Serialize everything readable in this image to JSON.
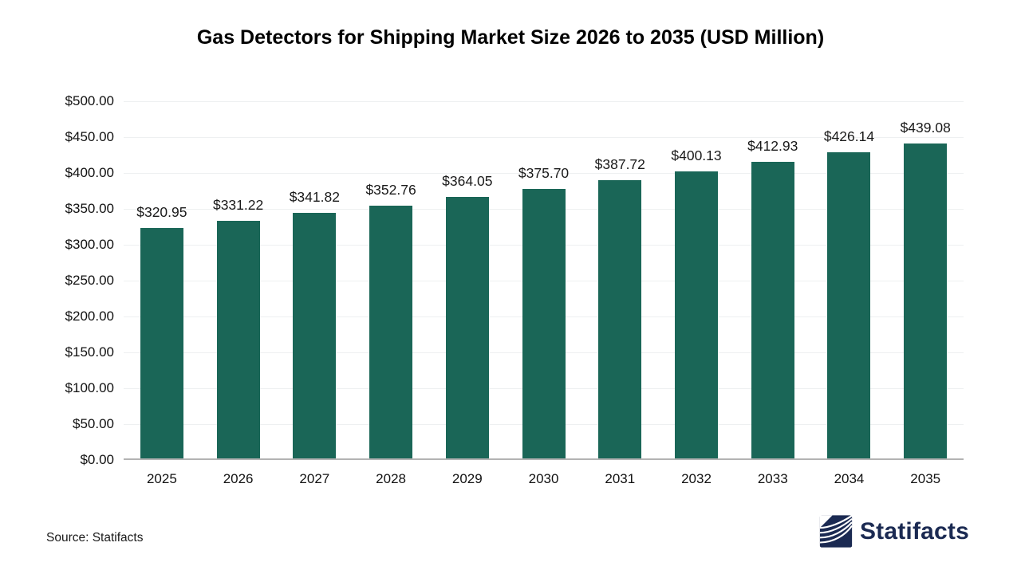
{
  "title": "Gas Detectors for Shipping Market Size 2026 to 2035 (USD Million)",
  "source": "Source: Statifacts",
  "logo": {
    "text": "Statifacts",
    "color": "#1b2a52",
    "icon": "statifacts-wave-icon"
  },
  "colors": {
    "bar": "#1a6657",
    "grid": "#eef0f1",
    "axis_line": "#b3b3b3",
    "tick_text": "#111111",
    "value_label_text": "#1a1a1a",
    "title_text": "#000000"
  },
  "chart_data": {
    "type": "bar",
    "title": "Gas Detectors for Shipping Market Size 2026 to 2035 (USD Million)",
    "categories": [
      "2025",
      "2026",
      "2027",
      "2028",
      "2029",
      "2030",
      "2031",
      "2032",
      "2033",
      "2034",
      "2035"
    ],
    "values": [
      320.95,
      331.22,
      341.82,
      352.76,
      364.05,
      375.7,
      387.72,
      400.13,
      412.93,
      426.14,
      439.08
    ],
    "value_labels": [
      "$320.95",
      "$331.22",
      "$341.82",
      "$352.76",
      "$364.05",
      "$375.70",
      "$387.72",
      "$400.13",
      "$412.93",
      "$426.14",
      "$439.08"
    ],
    "xlabel": "",
    "ylabel": "",
    "ylim": [
      0,
      500
    ],
    "y_tick_step": 50,
    "y_tick_labels_top_to_bottom": [
      "$500.00",
      "$450.00",
      "$400.00",
      "$350.00",
      "$300.00",
      "$250.00",
      "$200.00",
      "$150.00",
      "$100.00",
      "$50.00",
      "$0.00"
    ],
    "grid": "horizontal",
    "legend": "none",
    "bar_color": "#1a6657"
  }
}
